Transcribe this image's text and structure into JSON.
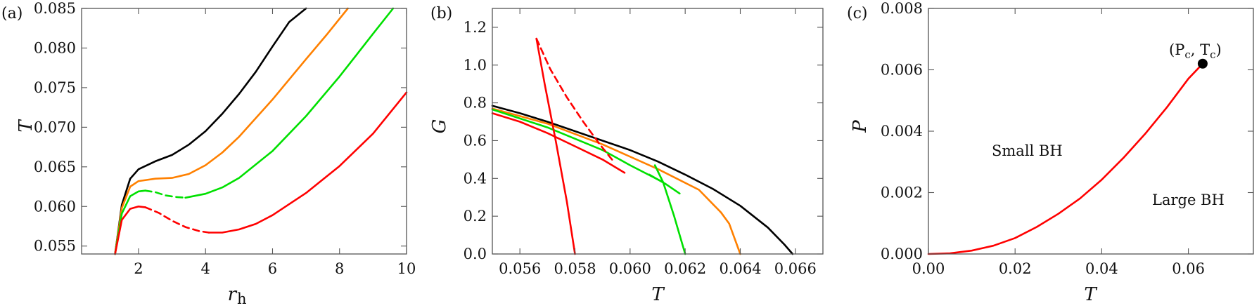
{
  "chart_data": [
    {
      "panel": "(a)",
      "type": "line",
      "xlabel": "r",
      "xlabel_sub": "h",
      "ylabel": "T",
      "xlim": [
        0.3,
        10
      ],
      "ylim": [
        0.054,
        0.085
      ],
      "xticks": [
        2,
        4,
        6,
        8,
        10
      ],
      "xtick_labels": [
        "2",
        "4",
        "6",
        "8",
        "10"
      ],
      "yticks": [
        0.055,
        0.06,
        0.065,
        0.07,
        0.075,
        0.08,
        0.085
      ],
      "ytick_labels": [
        "0.055",
        "0.060",
        "0.065",
        "0.070",
        "0.075",
        "0.080",
        "0.085"
      ],
      "series": [
        {
          "color": "#000000",
          "dash": false,
          "x": [
            1.3,
            1.5,
            1.75,
            2.0,
            2.5,
            3.0,
            3.5,
            4.0,
            4.5,
            5.0,
            5.5,
            6.0,
            6.5,
            7.0
          ],
          "y": [
            0.054,
            0.0602,
            0.0635,
            0.0647,
            0.0657,
            0.0665,
            0.0678,
            0.0695,
            0.0717,
            0.0742,
            0.077,
            0.0802,
            0.0833,
            0.085
          ]
        },
        {
          "color": "#ff8000",
          "dash": false,
          "x": [
            1.3,
            1.5,
            1.75,
            2.0,
            2.5,
            3.0,
            3.5,
            4.0,
            4.5,
            5.0,
            6.0,
            7.0,
            7.6,
            8.25
          ],
          "y": [
            0.054,
            0.0598,
            0.0625,
            0.0632,
            0.0635,
            0.0636,
            0.0641,
            0.0652,
            0.0668,
            0.0688,
            0.0735,
            0.0786,
            0.0816,
            0.085
          ]
        },
        {
          "color": "#00e000",
          "dash": false,
          "x": [
            1.3,
            1.5,
            1.75,
            2.0,
            2.2
          ],
          "y": [
            0.054,
            0.0591,
            0.0613,
            0.0619,
            0.062
          ]
        },
        {
          "color": "#00e000",
          "dash": true,
          "x": [
            2.2,
            2.5,
            2.8,
            3.1,
            3.4
          ],
          "y": [
            0.062,
            0.0618,
            0.0614,
            0.0612,
            0.0611
          ]
        },
        {
          "color": "#00e000",
          "dash": false,
          "x": [
            3.4,
            4.0,
            4.5,
            5.0,
            6.0,
            7.0,
            8.0,
            9.0,
            9.6
          ],
          "y": [
            0.0611,
            0.0616,
            0.0624,
            0.0636,
            0.067,
            0.0714,
            0.0764,
            0.0818,
            0.085
          ]
        },
        {
          "color": "#ff0000",
          "dash": false,
          "x": [
            1.3,
            1.5,
            1.75,
            2.0,
            2.2
          ],
          "y": [
            0.054,
            0.0583,
            0.0597,
            0.06,
            0.0599
          ]
        },
        {
          "color": "#ff0000",
          "dash": true,
          "x": [
            2.2,
            2.6,
            3.0,
            3.4,
            3.8,
            4.1
          ],
          "y": [
            0.0599,
            0.0592,
            0.0582,
            0.0574,
            0.0569,
            0.0567
          ]
        },
        {
          "color": "#ff0000",
          "dash": false,
          "x": [
            4.1,
            4.5,
            5.0,
            5.5,
            6.0,
            7.0,
            8.0,
            9.0,
            10.0
          ],
          "y": [
            0.0567,
            0.0567,
            0.0571,
            0.0578,
            0.0589,
            0.0617,
            0.0651,
            0.0692,
            0.0744
          ]
        }
      ]
    },
    {
      "panel": "(b)",
      "type": "line",
      "xlabel": "T",
      "ylabel": "G",
      "xlim": [
        0.055,
        0.067
      ],
      "ylim": [
        0.0,
        1.3
      ],
      "xticks": [
        0.056,
        0.058,
        0.06,
        0.062,
        0.064,
        0.066
      ],
      "xtick_labels": [
        "0.056",
        "0.058",
        "0.060",
        "0.062",
        "0.064",
        "0.066"
      ],
      "yticks": [
        0.0,
        0.2,
        0.4,
        0.6,
        0.8,
        1.0,
        1.2
      ],
      "ytick_labels": [
        "0.0",
        "0.2",
        "0.4",
        "0.6",
        "0.8",
        "1.0",
        "1.2"
      ],
      "series": [
        {
          "color": "#000000",
          "dash": false,
          "x": [
            0.055,
            0.056,
            0.057,
            0.058,
            0.059,
            0.06,
            0.061,
            0.062,
            0.063,
            0.064,
            0.065,
            0.0656,
            0.0659
          ],
          "y": [
            0.785,
            0.745,
            0.7,
            0.65,
            0.6,
            0.55,
            0.49,
            0.42,
            0.345,
            0.255,
            0.14,
            0.05,
            0.0
          ]
        },
        {
          "color": "#ff8000",
          "dash": false,
          "x": [
            0.055,
            0.057,
            0.059,
            0.061,
            0.0625,
            0.0633,
            0.0636,
            0.064
          ],
          "y": [
            0.77,
            0.69,
            0.58,
            0.45,
            0.34,
            0.22,
            0.16,
            0.0
          ]
        },
        {
          "color": "#00e000",
          "dash": false,
          "x": [
            0.055,
            0.057,
            0.059,
            0.06,
            0.0612
          ],
          "y": [
            0.765,
            0.67,
            0.55,
            0.47,
            0.38
          ]
        },
        {
          "color": "#00e000",
          "dash": false,
          "x": [
            0.0609,
            0.0612,
            0.0616,
            0.062
          ],
          "y": [
            0.47,
            0.38,
            0.2,
            0.0
          ]
        },
        {
          "color": "#00e000",
          "dash": false,
          "x": [
            0.0607,
            0.0613,
            0.0618
          ],
          "y": [
            0.42,
            0.37,
            0.32
          ]
        },
        {
          "color": "#ff0000",
          "dash": false,
          "x": [
            0.055,
            0.056,
            0.057,
            0.058,
            0.059,
            0.0598
          ],
          "y": [
            0.745,
            0.7,
            0.64,
            0.57,
            0.5,
            0.43
          ]
        },
        {
          "color": "#ff0000",
          "dash": false,
          "x": [
            0.0566,
            0.0569,
            0.0573,
            0.0577,
            0.058
          ],
          "y": [
            1.14,
            0.9,
            0.6,
            0.28,
            0.0
          ]
        },
        {
          "color": "#ff0000",
          "dash": true,
          "x": [
            0.0566,
            0.0571,
            0.0577,
            0.0583,
            0.0589,
            0.0594
          ],
          "y": [
            1.14,
            0.98,
            0.83,
            0.7,
            0.58,
            0.49
          ]
        }
      ]
    },
    {
      "panel": "(c)",
      "type": "line",
      "xlabel": "T",
      "ylabel": "P",
      "xlim": [
        0.0,
        0.075
      ],
      "ylim": [
        0.0,
        0.008
      ],
      "xticks": [
        0.0,
        0.02,
        0.04,
        0.06
      ],
      "xtick_labels": [
        "0.00",
        "0.02",
        "0.04",
        "0.06"
      ],
      "yticks": [
        0.0,
        0.002,
        0.004,
        0.006,
        0.008
      ],
      "ytick_labels": [
        "0.000",
        "0.002",
        "0.004",
        "0.006",
        "0.008"
      ],
      "series": [
        {
          "color": "#ff0000",
          "dash": false,
          "x": [
            0.0,
            0.005,
            0.01,
            0.015,
            0.02,
            0.025,
            0.03,
            0.035,
            0.04,
            0.045,
            0.05,
            0.055,
            0.06,
            0.0633
          ],
          "y": [
            0.0,
            2e-05,
            0.00011,
            0.00027,
            0.00052,
            0.00088,
            0.00131,
            0.00181,
            0.00242,
            0.00313,
            0.00391,
            0.00477,
            0.00571,
            0.0062
          ]
        }
      ],
      "critical_point": {
        "x": 0.0633,
        "y": 0.0062
      },
      "annotations": {
        "critical_label": "(P",
        "critical_label_sub1": "c",
        "critical_label_mid": ", T",
        "critical_label_sub2": "c",
        "critical_label_end": ")",
        "small_bh": "Small BH",
        "large_bh": "Large BH"
      }
    }
  ]
}
